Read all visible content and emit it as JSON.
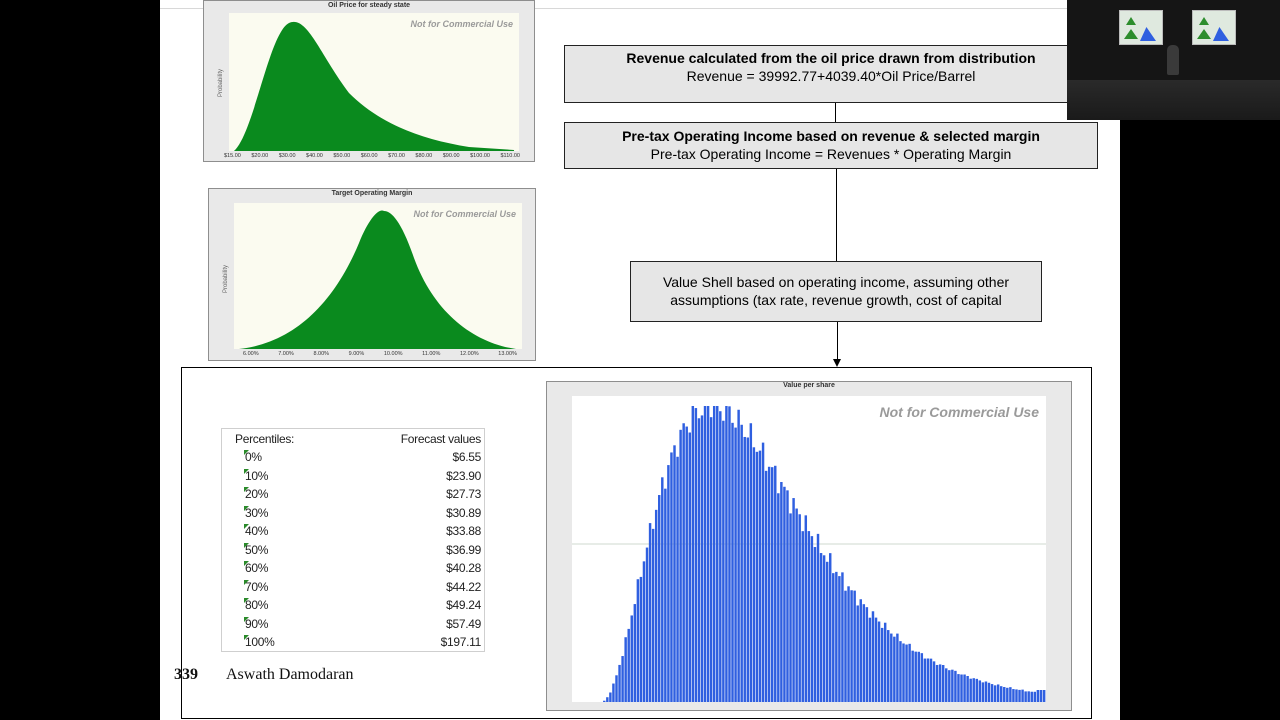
{
  "slide": {
    "oil_chart": {
      "title": "Oil Price for steady state",
      "ylabel": "Probability",
      "watermark": "Not for Commercial Use",
      "ticks": [
        "$15.00",
        "$20.00",
        "$30.00",
        "$40.00",
        "$50.00",
        "$60.00",
        "$70.00",
        "$80.00",
        "$90.00",
        "$100.00",
        "$110.00"
      ]
    },
    "margin_chart": {
      "title": "Target Operating Margin",
      "ylabel": "Probability",
      "watermark": "Not for Commercial Use",
      "ticks": [
        "6.00%",
        "7.00%",
        "8.00%",
        "9.00%",
        "10.00%",
        "11.00%",
        "12.00%",
        "13.00%"
      ]
    },
    "box1": {
      "title": "Revenue calculated from the oil price drawn from distribution",
      "formula": "Revenue = 39992.77+4039.40*Oil Price/Barrel"
    },
    "box2": {
      "title": "Pre-tax Operating Income based on revenue & selected margin",
      "formula": "Pre-tax Operating Income = Revenues * Operating Margin"
    },
    "box3": {
      "line1": "Value Shell based on operating income, assuming other",
      "line2": "assumptions (tax rate, revenue growth, cost of capital"
    },
    "percentiles": {
      "header_left": "Percentiles:",
      "header_right": "Forecast values",
      "rows": [
        {
          "p": "0%",
          "v": "$6.55"
        },
        {
          "p": "10%",
          "v": "$23.90"
        },
        {
          "p": "20%",
          "v": "$27.73"
        },
        {
          "p": "30%",
          "v": "$30.89"
        },
        {
          "p": "40%",
          "v": "$33.88"
        },
        {
          "p": "50%",
          "v": "$36.99"
        },
        {
          "p": "60%",
          "v": "$40.28"
        },
        {
          "p": "70%",
          "v": "$44.22"
        },
        {
          "p": "80%",
          "v": "$49.24"
        },
        {
          "p": "90%",
          "v": "$57.49"
        },
        {
          "p": "100%",
          "v": "$197.11"
        }
      ]
    },
    "value_chart": {
      "title": "Value per share",
      "watermark": "Not for Commercial Use"
    },
    "footer": {
      "page": "339",
      "author": "Aswath Damodaran"
    }
  },
  "colors": {
    "green_dist": "#0a8a1e",
    "blue_hist": "#2f5fe0",
    "box_fill": "#e6e6e6"
  }
}
